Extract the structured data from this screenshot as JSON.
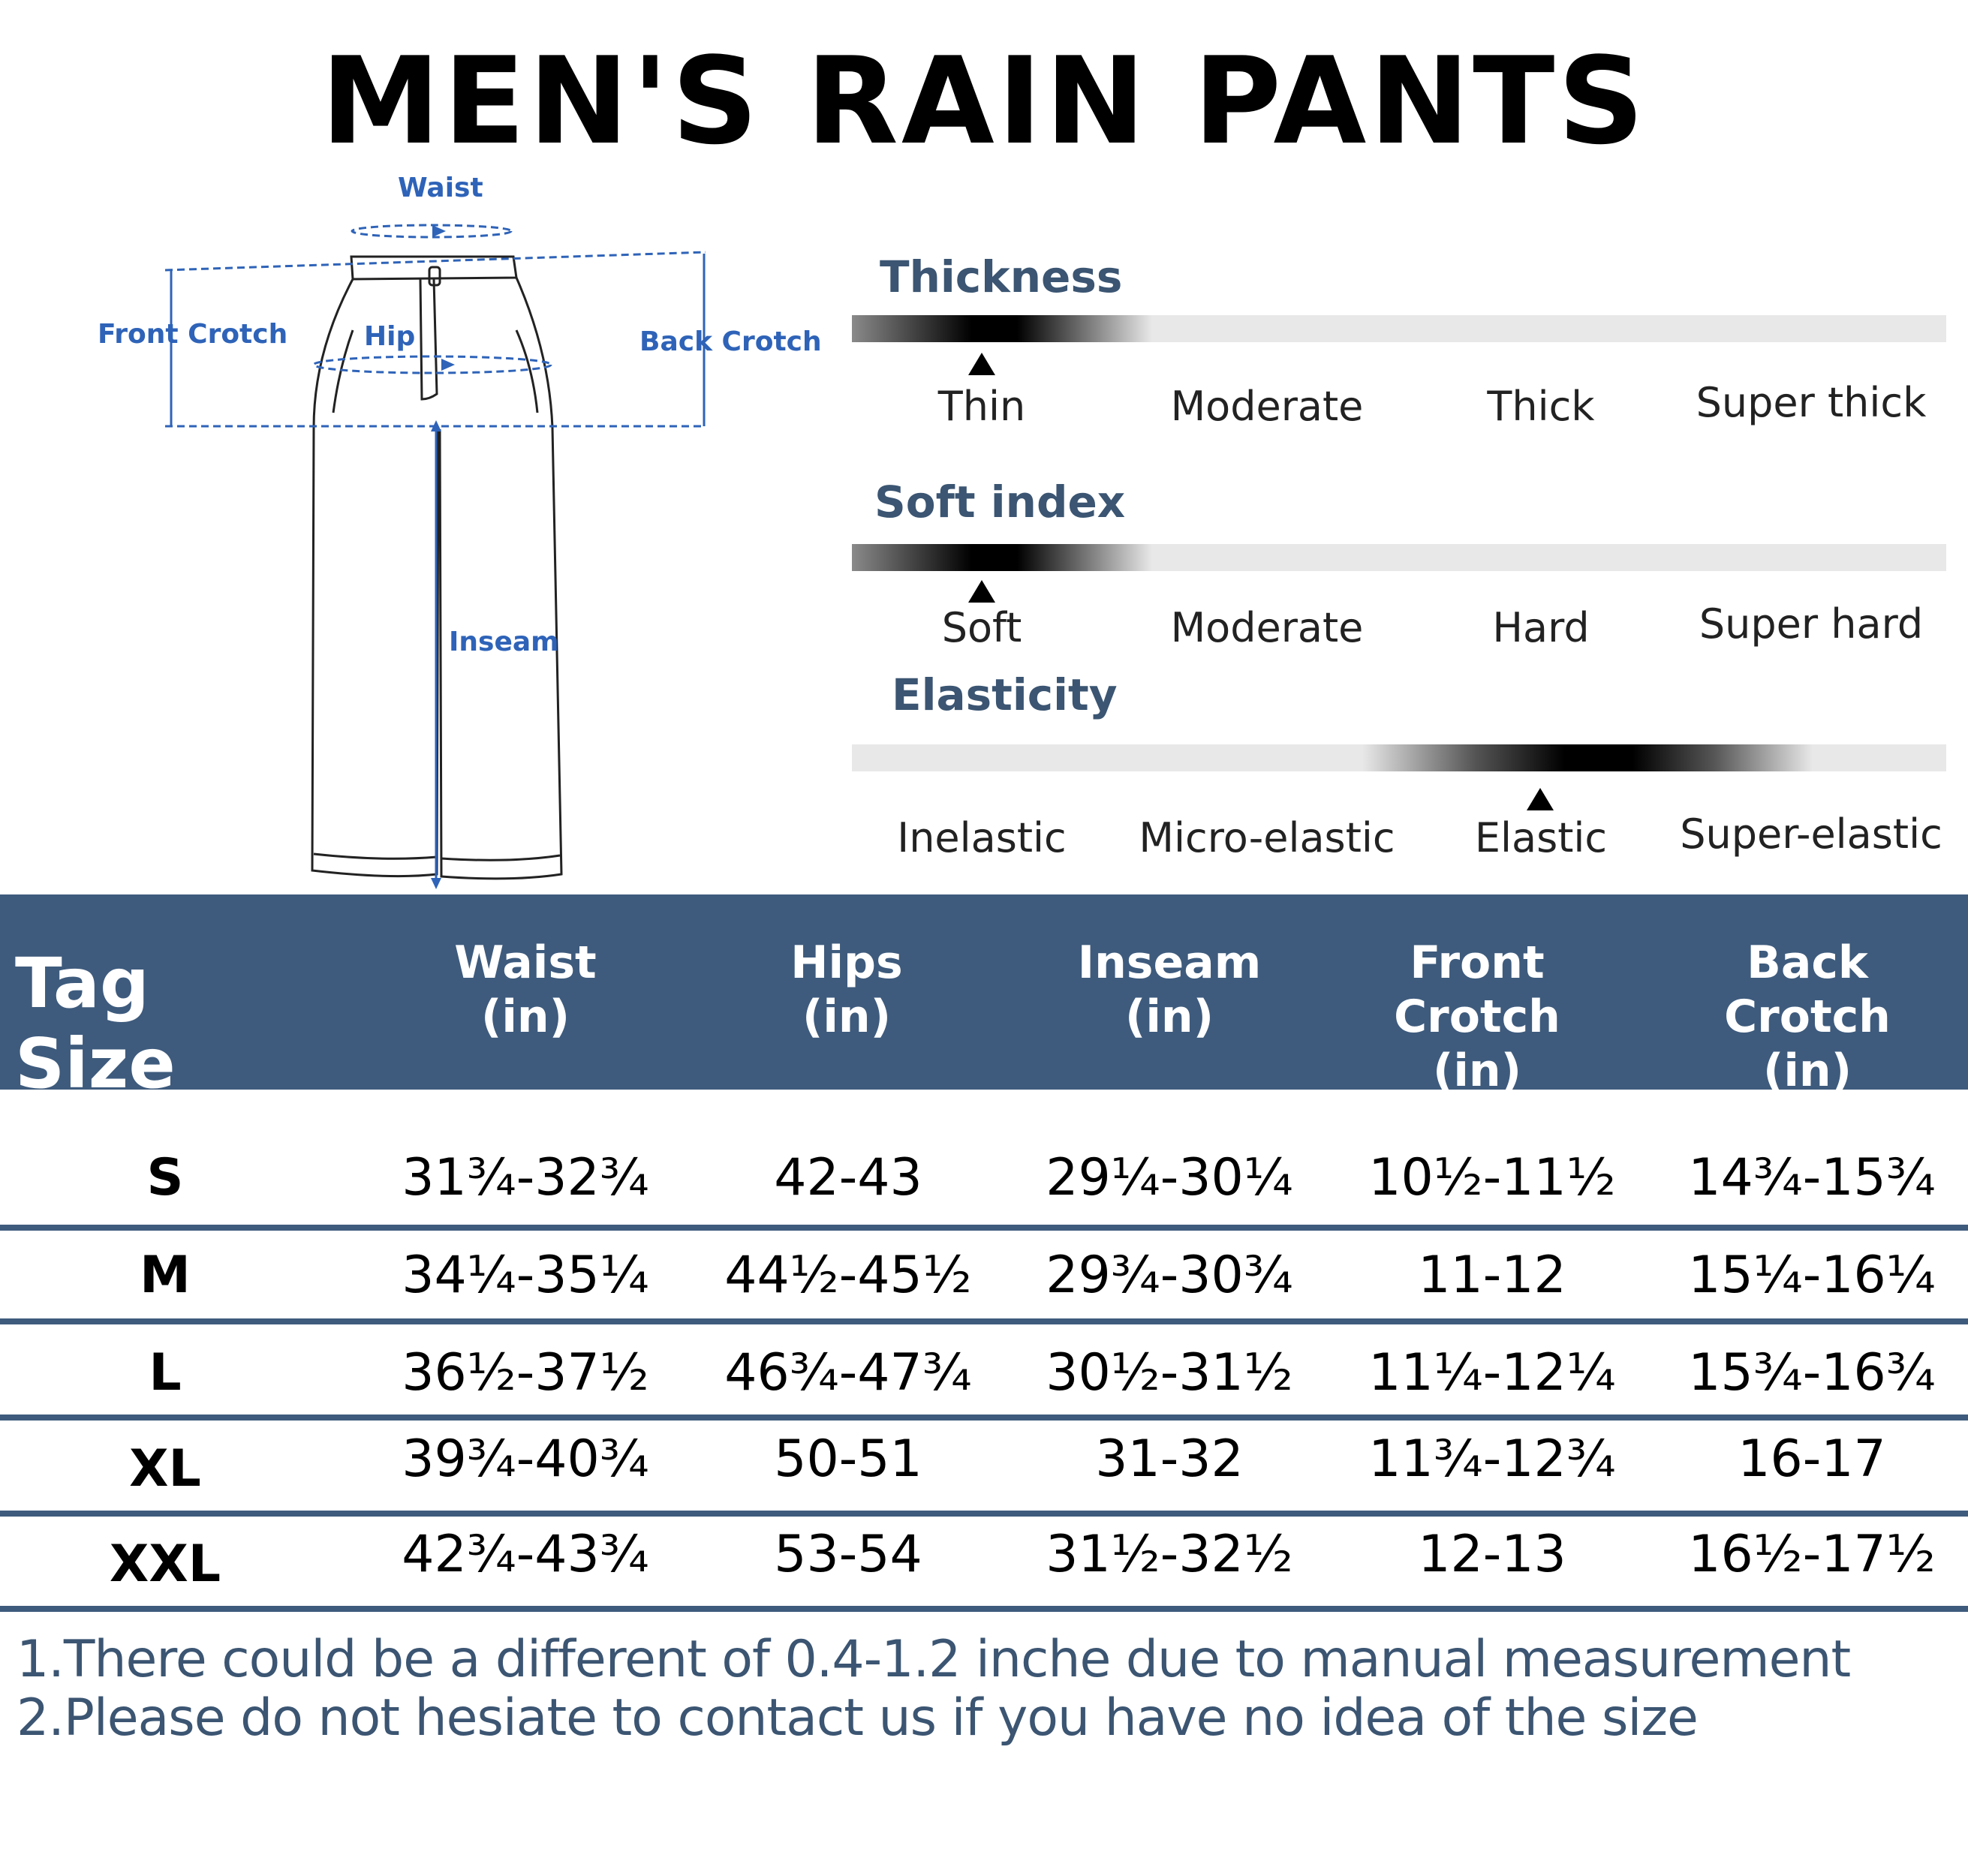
{
  "title": "MEN'S RAIN PANTS",
  "diagram": {
    "labels": {
      "waist": "Waist",
      "front_crotch": "Front Crotch",
      "hip": "Hip",
      "back_crotch": "Back Crotch",
      "inseam": "Inseam"
    },
    "color": "#2e63b8"
  },
  "attributes": [
    {
      "title": "Thickness",
      "options": [
        "Thin",
        "Moderate",
        "Thick",
        "Super thick"
      ],
      "selected": "Thin"
    },
    {
      "title": "Soft index",
      "options": [
        "Soft",
        "Moderate",
        "Hard",
        "Super hard"
      ],
      "selected": "Soft"
    },
    {
      "title": "Elasticity",
      "options": [
        "Inelastic",
        "Micro-elastic",
        "Elastic",
        "Super-elastic"
      ],
      "selected": "Elastic"
    }
  ],
  "table": {
    "header_color": "#3e5b7d",
    "size_header": "Tag Size",
    "columns": [
      "Waist\n(in)",
      "Hips\n(in)",
      "Inseam\n(in)",
      "Front Crotch\n(in)",
      "Back Crotch\n(in)"
    ],
    "rows": [
      {
        "size": "S",
        "values": [
          "31¾-32¾",
          "42-43",
          "29¼-30¼",
          "10½-11½",
          "14¾-15¾"
        ]
      },
      {
        "size": "M",
        "values": [
          "34¼-35¼",
          "44½-45½",
          "29¾-30¾",
          "11-12",
          "15¼-16¼"
        ]
      },
      {
        "size": "L",
        "values": [
          "36½-37½",
          "46¾-47¾",
          "30½-31½",
          "11¼-12¼",
          "15¾-16¾"
        ]
      },
      {
        "size": "XL",
        "values": [
          "39¾-40¾",
          "50-51",
          "31-32",
          "11¾-12¾",
          "16-17"
        ]
      },
      {
        "size": "XXL",
        "values": [
          "42¾-43¾",
          "53-54",
          "31½-32½",
          "12-13",
          "16½-17½"
        ]
      }
    ]
  },
  "notes": [
    "1.There could be a different of 0.4-1.2 inche due to manual measurement",
    "2.Please do not hesiate to contact us if you have no idea of the size"
  ]
}
